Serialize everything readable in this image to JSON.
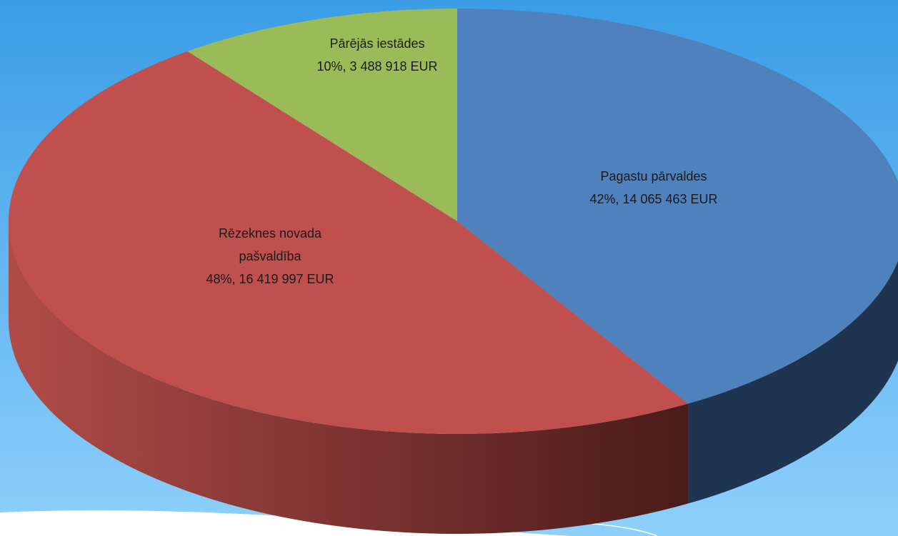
{
  "chart_data": {
    "type": "pie3d",
    "categories": [
      "Pagastu pārvaldes",
      "Rēzeknes  novada\npašvaldība",
      "Pārējās iestādes"
    ],
    "values": [
      14065463,
      16419997,
      3488918
    ],
    "value_labels": [
      "42%,  14 065 463 EUR",
      "48%,  16 419 997 EUR",
      "10%,  3 488 918 EUR"
    ],
    "colors": [
      "#4f81bd",
      "#c0504d",
      "#9bbb59"
    ],
    "side_colors": [
      "#1f3450",
      "#8a3633",
      "#5c7232"
    ]
  }
}
